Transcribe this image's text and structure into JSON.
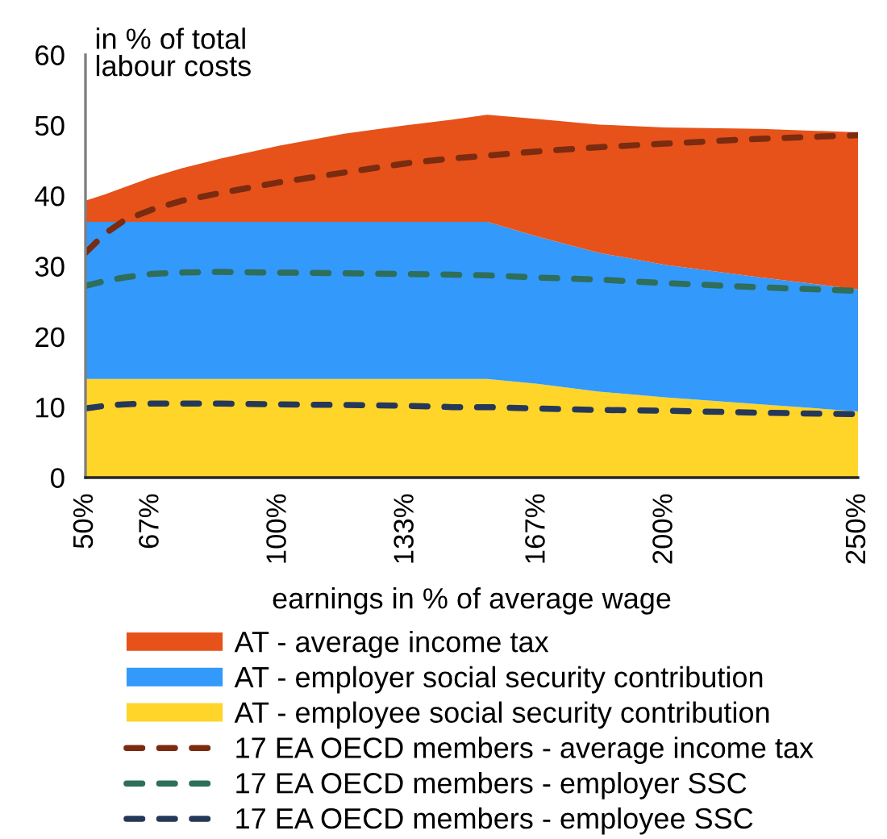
{
  "chart_data": {
    "type": "area",
    "stacked": true,
    "xlabel": "earnings in % of average wage",
    "ylabel": "in % of total\nlabour costs",
    "x": [
      50,
      55,
      60,
      67,
      75,
      85,
      100,
      117,
      133,
      145,
      154,
      167,
      183,
      200,
      225,
      250
    ],
    "xlim": [
      50,
      250
    ],
    "xticks": [
      {
        "value": 50,
        "label": "50%"
      },
      {
        "value": 67,
        "label": "67%"
      },
      {
        "value": 100,
        "label": "100%"
      },
      {
        "value": 133,
        "label": "133%"
      },
      {
        "value": 167,
        "label": "167%"
      },
      {
        "value": 200,
        "label": "200%"
      },
      {
        "value": 250,
        "label": "250%"
      }
    ],
    "ylim": [
      0,
      60
    ],
    "yticks": [
      0,
      10,
      20,
      30,
      40,
      50,
      60
    ],
    "legend": "bottom",
    "series": [
      {
        "name": "AT - employee social security contribution",
        "color": "#ffd52a",
        "values": [
          14.0,
          14.0,
          14.0,
          14.0,
          14.0,
          14.0,
          14.0,
          14.0,
          14.0,
          14.0,
          14.0,
          13.3,
          12.2,
          11.4,
          10.4,
          9.4
        ]
      },
      {
        "name": "AT - employer social security contribution",
        "color": "#3399fb",
        "values": [
          22.3,
          22.3,
          22.3,
          22.3,
          22.3,
          22.3,
          22.3,
          22.3,
          22.3,
          22.3,
          22.3,
          20.9,
          19.7,
          18.8,
          18.0,
          17.3
        ]
      },
      {
        "name": "AT - average income tax",
        "color": "#e6521a",
        "values": [
          3.0,
          3.9,
          4.9,
          6.3,
          7.6,
          9.0,
          10.8,
          12.5,
          13.7,
          14.5,
          15.2,
          16.7,
          18.2,
          19.5,
          21.1,
          22.3
        ]
      },
      {
        "name": "17 EA OECD members - average income tax",
        "type": "line",
        "line_style": "dashed",
        "color": "#7a2b10",
        "values": [
          31.9,
          34.6,
          36.5,
          38.0,
          39.3,
          40.4,
          41.9,
          43.3,
          44.6,
          45.3,
          45.7,
          46.3,
          46.9,
          47.4,
          48.1,
          48.6
        ]
      },
      {
        "name": "17 EA OECD members - employer SSC",
        "type": "line",
        "line_style": "dashed",
        "color": "#2e6e5a",
        "values": [
          27.2,
          27.9,
          28.4,
          28.9,
          29.1,
          29.2,
          29.1,
          29.0,
          28.9,
          28.8,
          28.7,
          28.4,
          28.1,
          27.6,
          27.0,
          26.5
        ]
      },
      {
        "name": "17 EA OECD members - employee SSC",
        "type": "line",
        "line_style": "dashed",
        "color": "#263859",
        "values": [
          9.8,
          10.2,
          10.4,
          10.5,
          10.5,
          10.5,
          10.4,
          10.3,
          10.2,
          10.0,
          10.0,
          9.8,
          9.6,
          9.5,
          9.2,
          9.0
        ]
      }
    ]
  }
}
